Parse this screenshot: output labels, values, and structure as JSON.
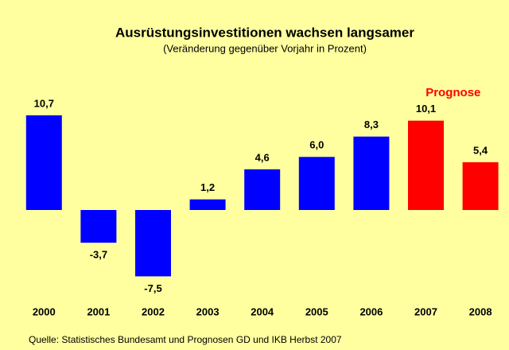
{
  "chart_data": {
    "type": "bar",
    "title": "Ausrüstungsinvestitionen wachsen langsamer",
    "subtitle": "(Veränderung gegenüber Vorjahr in Prozent)",
    "categories": [
      "2000",
      "2001",
      "2002",
      "2003",
      "2004",
      "2005",
      "2006",
      "2007",
      "2008"
    ],
    "values": [
      10.7,
      -3.7,
      -7.5,
      1.2,
      4.6,
      6.0,
      8.3,
      10.1,
      5.4
    ],
    "value_labels": [
      "10,7",
      "-3,7",
      "-7,5",
      "1,2",
      "4,6",
      "6,0",
      "8,3",
      "10,1",
      "5,4"
    ],
    "colors": [
      "#0000ff",
      "#0000ff",
      "#0000ff",
      "#0000ff",
      "#0000ff",
      "#0000ff",
      "#0000ff",
      "#ff0000",
      "#ff0000"
    ],
    "annotation": "Prognose",
    "annotation_color": "#ff0000",
    "source": "Quelle: Statistisches Bundesamt und Prognosen GD und IKB Herbst 2007"
  }
}
